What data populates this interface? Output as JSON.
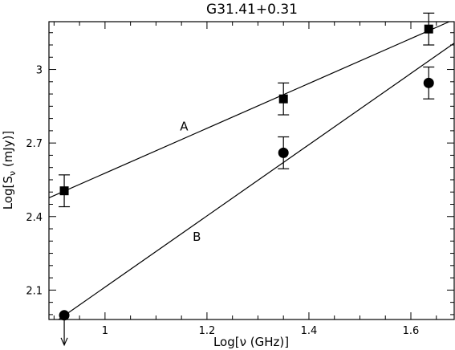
{
  "chart_data": {
    "type": "scatter",
    "title": "G31.41+0.31",
    "xlabel": "Log[ν (GHz)]",
    "ylabel": "Log[Sν (mJy)]",
    "xlim": [
      0.89,
      1.685
    ],
    "ylim": [
      1.98,
      3.195
    ],
    "x_ticks": [
      {
        "value": 1.0,
        "label": "1"
      },
      {
        "value": 1.2,
        "label": "1.2"
      },
      {
        "value": 1.4,
        "label": "1.4"
      },
      {
        "value": 1.6,
        "label": "1.6"
      }
    ],
    "y_ticks": [
      {
        "value": 2.1,
        "label": "2.1"
      },
      {
        "value": 2.4,
        "label": "2.4"
      },
      {
        "value": 2.7,
        "label": "2.7"
      },
      {
        "value": 3.0,
        "label": "3"
      }
    ],
    "series": [
      {
        "name": "A",
        "marker": "square",
        "points": [
          {
            "x": 0.92,
            "y": 2.505,
            "err": 0.065
          },
          {
            "x": 1.35,
            "y": 2.88,
            "err": 0.065
          },
          {
            "x": 1.635,
            "y": 3.165,
            "err": 0.065
          }
        ],
        "fit": {
          "slope": 0.915,
          "intercept": 1.662
        }
      },
      {
        "name": "B",
        "marker": "circle",
        "points": [
          {
            "x": 0.92,
            "y": 1.997,
            "upper_limit": true
          },
          {
            "x": 1.35,
            "y": 2.66,
            "err": 0.065
          },
          {
            "x": 1.635,
            "y": 2.945,
            "err": 0.065
          }
        ],
        "fit": {
          "slope": 1.453,
          "intercept": 0.659
        }
      }
    ],
    "grid": false
  }
}
